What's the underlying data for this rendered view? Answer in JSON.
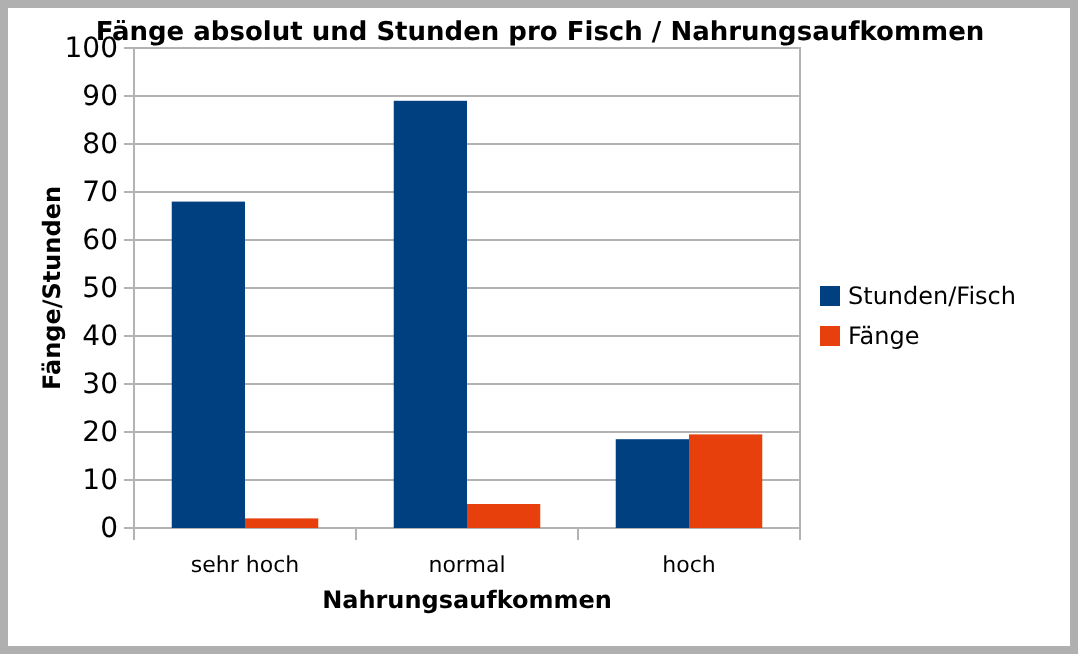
{
  "chart_data": {
    "type": "bar",
    "title": "Fänge absolut und Stunden pro Fisch / Nahrungsaufkommen",
    "xlabel": "Nahrungsaufkommen",
    "ylabel": "Fänge/Stunden",
    "categories": [
      "sehr hoch",
      "normal",
      "hoch"
    ],
    "series": [
      {
        "name": "Stunden/Fisch",
        "color": "#004080",
        "values": [
          68,
          89,
          18.5
        ]
      },
      {
        "name": "Fänge",
        "color": "#e8400c",
        "values": [
          2,
          5,
          19.5
        ]
      }
    ],
    "ylim": [
      0,
      100
    ],
    "yticks": [
      0,
      10,
      20,
      30,
      40,
      50,
      60,
      70,
      80,
      90,
      100
    ],
    "grid": "y",
    "legend": "right"
  }
}
